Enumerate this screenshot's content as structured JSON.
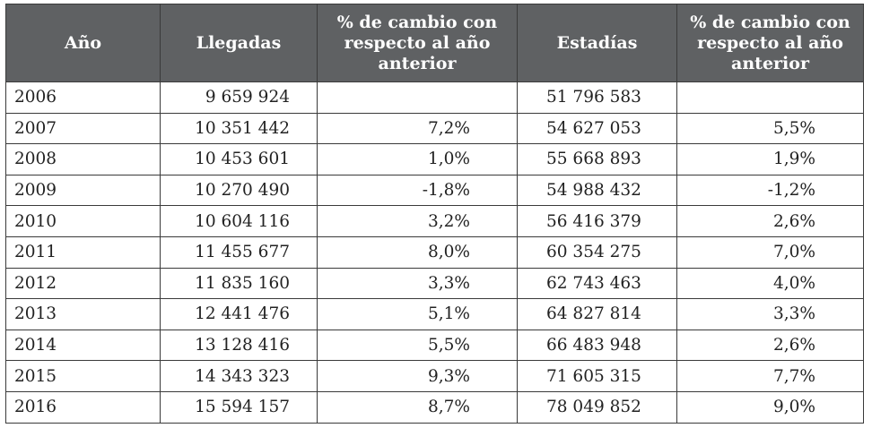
{
  "table": {
    "headers": [
      "Año",
      "Llegadas",
      "% de cambio con respecto al año anterior",
      "Estadías",
      "% de cambio con respecto al año anterior"
    ],
    "rows": [
      [
        "2006",
        "9 659 924",
        "",
        "51 796 583",
        ""
      ],
      [
        "2007",
        "10 351 442",
        "7,2%",
        "54 627 053",
        "5,5%"
      ],
      [
        "2008",
        "10 453 601",
        "1,0%",
        "55 668 893",
        "1,9%"
      ],
      [
        "2009",
        "10 270 490",
        "-1,8%",
        "54 988 432",
        "-1,2%"
      ],
      [
        "2010",
        "10 604 116",
        "3,2%",
        "56 416 379",
        "2,6%"
      ],
      [
        "2011",
        "11 455 677",
        "8,0%",
        "60 354 275",
        "7,0%"
      ],
      [
        "2012",
        "11 835 160",
        "3,3%",
        "62 743 463",
        "4,0%"
      ],
      [
        "2013",
        "12 441 476",
        "5,1%",
        "64 827 814",
        "3,3%"
      ],
      [
        "2014",
        "13 128 416",
        "5,5%",
        "66 483 948",
        "2,6%"
      ],
      [
        "2015",
        "14 343 323",
        "9,3%",
        "71 605 315",
        "7,7%"
      ],
      [
        "2016",
        "15 594 157",
        "8,7%",
        "78 049 852",
        "9,0%"
      ]
    ]
  },
  "colors": {
    "header_bg": "#5f6163",
    "header_text": "#ffffff",
    "border": "#3a3a3a"
  }
}
